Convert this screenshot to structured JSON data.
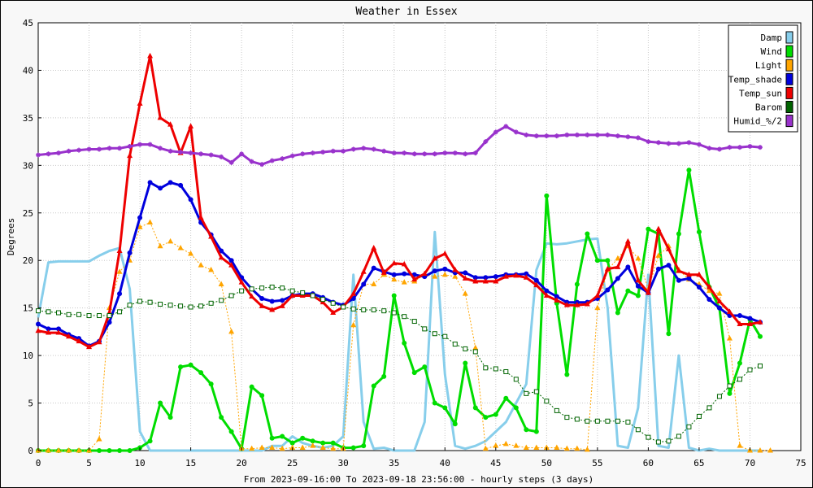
{
  "chart_data": {
    "type": "line",
    "title": "Weather in Essex",
    "xlabel": "From 2023-09-16:00 To 2023-09-18 23:56:00 - hourly steps (3 days)",
    "ylabel": "Degrees",
    "xlim": [
      0,
      75
    ],
    "ylim": [
      0,
      45
    ],
    "xticks": [
      0,
      5,
      10,
      15,
      20,
      25,
      30,
      35,
      40,
      45,
      50,
      55,
      60,
      65,
      70,
      75
    ],
    "yticks": [
      0,
      5,
      10,
      15,
      20,
      25,
      30,
      35,
      40,
      45
    ],
    "grid": true,
    "legend_position": "top-right",
    "series": [
      {
        "name": "Damp",
        "color": "#87ceeb",
        "marker": "none",
        "width": 3,
        "values": [
          14,
          19.8,
          19.9,
          19.9,
          19.9,
          19.9,
          20.5,
          21,
          21.3,
          17,
          2,
          0,
          0,
          0,
          0,
          0,
          0,
          0,
          0,
          0,
          0,
          0,
          0,
          0.5,
          0.5,
          1.5,
          0.8,
          0.5,
          0.3,
          0.5,
          1.5,
          18.5,
          3,
          0.2,
          0.3,
          0,
          0,
          0,
          3,
          23,
          8,
          0.5,
          0.2,
          0.5,
          1,
          2,
          3,
          5,
          7,
          19,
          21.8,
          21.7,
          21.8,
          22,
          22.2,
          22.3,
          15,
          0.5,
          0.3,
          4.5,
          18.5,
          0.5,
          0.3,
          10,
          0.3,
          0,
          0.2,
          0,
          0,
          0,
          0,
          0
        ]
      },
      {
        "name": "Wind",
        "color": "#00dd00",
        "marker": "dot",
        "width": 3,
        "values": [
          0,
          0,
          0,
          0,
          0,
          0,
          0,
          0,
          0,
          0,
          0.3,
          1,
          5,
          3.5,
          8.8,
          9,
          8.2,
          7,
          3.5,
          2,
          0.2,
          6.7,
          5.8,
          1.3,
          1.5,
          0.8,
          1.3,
          1,
          0.8,
          0.8,
          0.3,
          0.3,
          0.5,
          6.8,
          7.8,
          16.3,
          11.3,
          8.2,
          8.8,
          5,
          4.5,
          2.8,
          9.2,
          4.5,
          3.5,
          3.8,
          5.5,
          4.5,
          2.2,
          2,
          26.8,
          15.5,
          8,
          17.5,
          22.8,
          20,
          20,
          14.5,
          16.8,
          16.3,
          23.3,
          22.8,
          12.3,
          22.8,
          29.5,
          23,
          17.2,
          15,
          6,
          9.2,
          13.8,
          12
        ]
      },
      {
        "name": "Light",
        "color": "#ffa500",
        "marker": "triangle",
        "width": 1,
        "values": [
          0,
          0,
          0,
          0,
          0,
          0,
          1.2,
          15,
          18.8,
          20,
          23.5,
          24,
          21.5,
          22,
          21.3,
          20.7,
          19.5,
          19,
          17.5,
          12.5,
          0.2,
          0.2,
          0.3,
          0.3,
          0.2,
          0.3,
          0.3,
          0.5,
          0.3,
          0.2,
          0.2,
          13.2,
          17.5,
          17.5,
          18.5,
          18,
          17.7,
          17.8,
          18.5,
          18.3,
          18.5,
          18.3,
          16.5,
          10.8,
          0.2,
          0.5,
          0.7,
          0.5,
          0.3,
          0.3,
          0.3,
          0.3,
          0.2,
          0.2,
          0.1,
          15,
          19,
          20.2,
          21.5,
          20.2,
          17,
          20.5,
          21.5,
          19,
          18,
          17.5,
          16.8,
          16.5,
          11.8,
          0.5,
          0,
          0,
          0
        ]
      },
      {
        "name": "Temp_shade",
        "color": "#0000dd",
        "marker": "dot",
        "width": 3,
        "values": [
          13.3,
          12.8,
          12.8,
          12.2,
          11.8,
          11,
          11.5,
          13.5,
          16.5,
          20.8,
          24.5,
          28.2,
          27.6,
          28.2,
          27.9,
          26.4,
          24,
          22.7,
          21,
          20,
          18.2,
          17,
          16,
          15.7,
          15.8,
          16.3,
          16.5,
          16.5,
          16.1,
          15.6,
          15.3,
          16,
          17.5,
          19.2,
          18.8,
          18.5,
          18.6,
          18.5,
          18.3,
          18.9,
          19.1,
          18.7,
          18.7,
          18.2,
          18.2,
          18.3,
          18.5,
          18.5,
          18.6,
          17.9,
          16.8,
          16.2,
          15.6,
          15.6,
          15.6,
          16,
          16.9,
          18.1,
          19.3,
          17.3,
          16.6,
          19.1,
          19.5,
          17.9,
          18.1,
          17.2,
          15.9,
          15,
          14.2,
          14.2,
          13.9,
          13.5
        ]
      },
      {
        "name": "Temp_sun",
        "color": "#ee0000",
        "marker": "triangle",
        "width": 3,
        "values": [
          12.6,
          12.4,
          12.4,
          12,
          11.5,
          10.9,
          11.4,
          14.5,
          21,
          31,
          36.5,
          41.5,
          35,
          34.3,
          31.3,
          34.1,
          24.5,
          22.5,
          20.3,
          19.5,
          17.7,
          16.2,
          15.2,
          14.8,
          15.2,
          16.3,
          16.3,
          16.3,
          15.6,
          14.5,
          15.1,
          16.5,
          18.8,
          21.3,
          18.7,
          19.7,
          19.6,
          18,
          18.6,
          20.2,
          20.7,
          19,
          18.1,
          17.8,
          17.8,
          17.8,
          18.3,
          18.4,
          18.2,
          17.4,
          16.3,
          15.8,
          15.3,
          15.3,
          15.4,
          16.3,
          19.1,
          19.3,
          22,
          17.9,
          16.6,
          23.3,
          21.2,
          18.9,
          18.5,
          18.5,
          17.2,
          15.7,
          14.6,
          13.3,
          13.3,
          13.5
        ]
      },
      {
        "name": "Barom",
        "color": "#006400",
        "marker": "square",
        "width": 1,
        "values": [
          14.7,
          14.6,
          14.5,
          14.3,
          14.3,
          14.2,
          14.2,
          14.2,
          14.6,
          15.3,
          15.7,
          15.6,
          15.4,
          15.3,
          15.2,
          15.1,
          15.2,
          15.5,
          15.8,
          16.3,
          16.8,
          17,
          17.1,
          17.2,
          17.1,
          16.8,
          16.6,
          16.3,
          15.9,
          15.5,
          15.1,
          14.9,
          14.8,
          14.8,
          14.7,
          14.5,
          14.1,
          13.6,
          12.8,
          12.3,
          12,
          11.2,
          10.7,
          10.4,
          8.7,
          8.6,
          8.3,
          7.5,
          6,
          6.2,
          5.2,
          4.2,
          3.5,
          3.3,
          3.1,
          3.1,
          3.1,
          3.1,
          3,
          2.2,
          1.4,
          0.9,
          1,
          1.5,
          2.5,
          3.6,
          4.5,
          5.7,
          6.8,
          7.5,
          8.5,
          8.9
        ]
      },
      {
        "name": "Humid_%/2",
        "color": "#9932cc",
        "marker": "star",
        "width": 3,
        "values": [
          31.1,
          31.2,
          31.3,
          31.5,
          31.6,
          31.7,
          31.7,
          31.8,
          31.8,
          32,
          32.2,
          32.2,
          31.8,
          31.5,
          31.4,
          31.3,
          31.2,
          31.1,
          30.9,
          30.3,
          31.2,
          30.4,
          30.1,
          30.5,
          30.7,
          31,
          31.2,
          31.3,
          31.4,
          31.5,
          31.5,
          31.7,
          31.8,
          31.7,
          31.5,
          31.3,
          31.3,
          31.2,
          31.2,
          31.2,
          31.3,
          31.3,
          31.2,
          31.3,
          32.5,
          33.5,
          34.1,
          33.5,
          33.2,
          33.1,
          33.1,
          33.1,
          33.2,
          33.2,
          33.2,
          33.2,
          33.2,
          33.1,
          33,
          32.9,
          32.5,
          32.4,
          32.3,
          32.3,
          32.4,
          32.2,
          31.8,
          31.7,
          31.9,
          31.9,
          32,
          31.9
        ]
      }
    ]
  }
}
